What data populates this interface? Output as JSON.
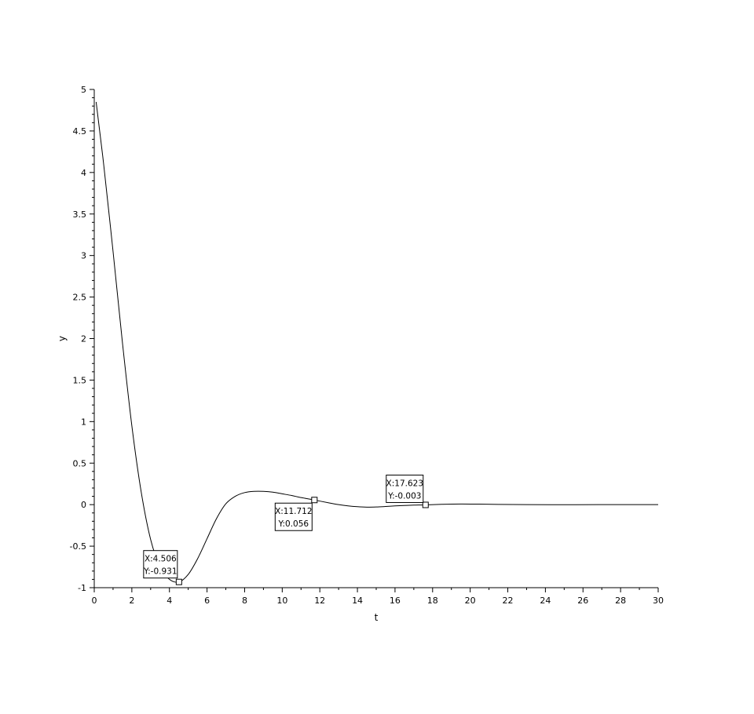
{
  "chart_data": {
    "type": "line",
    "title": "",
    "xlabel": "t",
    "ylabel": "y",
    "xlim": [
      0,
      30
    ],
    "ylim": [
      -1,
      5
    ],
    "x_ticks": [
      "0",
      "2",
      "4",
      "6",
      "8",
      "10",
      "12",
      "14",
      "16",
      "18",
      "20",
      "22",
      "24",
      "26",
      "28",
      "30"
    ],
    "y_ticks": [
      "-1",
      "-0.5",
      "0",
      "0.5",
      "1",
      "1.5",
      "2",
      "2.5",
      "3",
      "3.5",
      "4",
      "4.5",
      "5"
    ],
    "grid": false,
    "series": [
      {
        "x": [
          0.1,
          0.5,
          1.0,
          1.5,
          2.0,
          2.5,
          3.0,
          3.5,
          4.0,
          4.506,
          5.0,
          5.5,
          6.0,
          6.5,
          7.0,
          7.5,
          8.0,
          8.5,
          9.0,
          9.5,
          10.0,
          10.5,
          11.0,
          11.712,
          12.5,
          13.0,
          13.5,
          14.0,
          14.5,
          15.0,
          15.5,
          16.0,
          16.5,
          17.0,
          17.623,
          18.5,
          19.5,
          20.5,
          21.5,
          23.0,
          25.0,
          27.0,
          30.0
        ],
        "y": [
          4.85,
          4.1,
          3.05,
          1.95,
          0.95,
          0.15,
          -0.42,
          -0.75,
          -0.9,
          -0.931,
          -0.84,
          -0.65,
          -0.41,
          -0.17,
          0.01,
          0.1,
          0.145,
          0.16,
          0.16,
          0.15,
          0.13,
          0.11,
          0.085,
          0.056,
          0.02,
          0.0,
          -0.015,
          -0.025,
          -0.03,
          -0.028,
          -0.022,
          -0.015,
          -0.01,
          -0.006,
          -0.003,
          0.004,
          0.008,
          0.006,
          0.003,
          0.0,
          -0.001,
          0.0,
          0.0
        ]
      }
    ],
    "datatips": [
      {
        "x": 4.506,
        "y": -0.931,
        "x_text": "X:4.506",
        "y_text": "Y:-0.931"
      },
      {
        "x": 11.712,
        "y": 0.056,
        "x_text": "X:11.712",
        "y_text": "Y:0.056"
      },
      {
        "x": 17.623,
        "y": -0.003,
        "x_text": "X:17.623",
        "y_text": "Y:-0.003"
      }
    ]
  }
}
